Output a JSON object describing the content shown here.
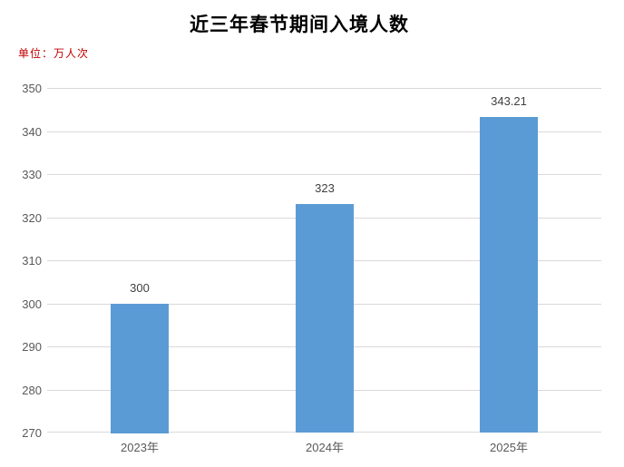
{
  "header": {
    "title": "近三年春节期间入境人数",
    "unit_label": "单位：万人次"
  },
  "chart_data": {
    "type": "bar",
    "title": "近三年春节期间入境人数",
    "unit": "万人次",
    "categories": [
      "2023年",
      "2024年",
      "2025年"
    ],
    "values": [
      300,
      323,
      343.21
    ],
    "data_labels": [
      "300",
      "323",
      "343.21"
    ],
    "xlabel": "",
    "ylabel": "",
    "ylim": [
      270,
      350
    ],
    "yticks": [
      270,
      280,
      290,
      300,
      310,
      320,
      330,
      340,
      350
    ],
    "grid": "horizontal",
    "legend": "none",
    "colors": {
      "bar": "#5B9BD5",
      "gridline": "#D9D9D9",
      "axis_label": "#595959",
      "data_label": "#404040",
      "title": "#000000",
      "unit_label": "#C00000",
      "background": "#FFFFFF"
    }
  }
}
